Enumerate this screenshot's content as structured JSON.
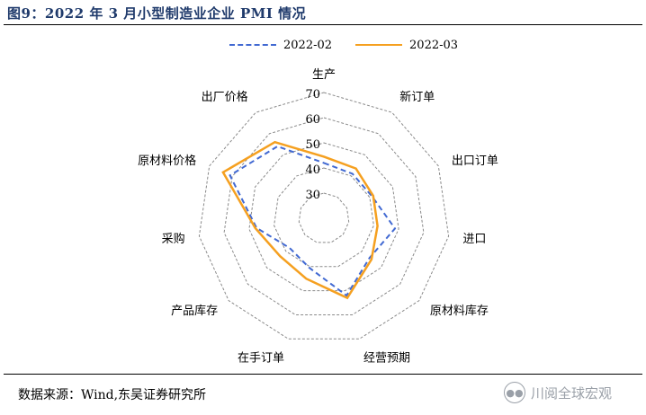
{
  "title": "图9：2022 年 3 月小型制造业企业 PMI 情况",
  "source": "数据来源：Wind,东吴证券研究所",
  "watermark": {
    "text": "川阅全球宏观",
    "icon": "wechat-icon"
  },
  "colors": {
    "series0": "#4169d2",
    "series1": "#f5a020",
    "grid": "#8a8a8a",
    "title": "#1f3a6b"
  },
  "chart_data": {
    "type": "radar",
    "categories": [
      "生产",
      "新订单",
      "出口订单",
      "进口",
      "原材料库存",
      "经营预期",
      "在手订单",
      "产品库存",
      "采购",
      "原材料价格",
      "出厂价格"
    ],
    "ticks": [
      30,
      40,
      50,
      60,
      70
    ],
    "range": [
      20,
      70
    ],
    "grid": true,
    "legend_position": "top",
    "series": [
      {
        "name": "2022-02",
        "style": "dashed",
        "values": [
          42,
          41,
          41,
          48.5,
          44,
          52,
          40.5,
          38,
          47,
          61,
          54
        ]
      },
      {
        "name": "2022-03",
        "style": "solid",
        "values": [
          44.5,
          43.5,
          41.5,
          41.5,
          45,
          53,
          45,
          43,
          47.5,
          64,
          56
        ]
      }
    ]
  }
}
